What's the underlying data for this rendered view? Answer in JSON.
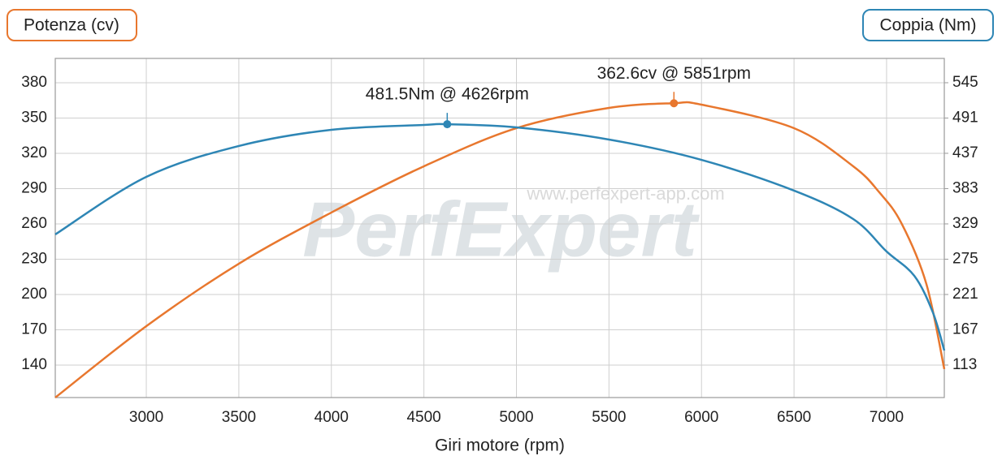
{
  "chart_data": {
    "type": "line",
    "x_label": "Giri motore (rpm)",
    "y_label": "Potenza (cv)",
    "y2_label": "Coppia (Nm)",
    "xlim": [
      2508,
      7312
    ],
    "xticks": [
      3000,
      3500,
      4000,
      4500,
      5000,
      5500,
      6000,
      6500,
      7000
    ],
    "ylim": [
      112.4,
      400.7
    ],
    "yticks": [
      140,
      170,
      200,
      230,
      260,
      290,
      320,
      350,
      380
    ],
    "y2lim": [
      63.3,
      582.2
    ],
    "y2ticks": [
      113,
      167,
      221,
      275,
      329,
      383,
      437,
      491,
      545
    ],
    "grid": true,
    "series": [
      {
        "name": "Potenza (cv)",
        "color": "#e8772e",
        "x": [
          2508,
          3000,
          3500,
          4000,
          4500,
          5000,
          5500,
          5851,
          6000,
          6500,
          6820,
          6960,
          7080,
          7215,
          7312
        ],
        "values": [
          112.4,
          173.1,
          226.2,
          269.7,
          309,
          341.4,
          358.6,
          362.6,
          361.4,
          341.4,
          309,
          287,
          260.7,
          209,
          136.6
        ]
      },
      {
        "name": "Coppia (Nm)",
        "color": "#2e86b5",
        "axis": "y2",
        "x": [
          2508,
          3000,
          3500,
          4000,
          4500,
          4626,
          5000,
          5500,
          6000,
          6500,
          6820,
          7000,
          7150,
          7250,
          7312
        ],
        "values": [
          312.9,
          401,
          448.2,
          473,
          480.4,
          481.5,
          476.7,
          458.1,
          427,
          379.9,
          336.4,
          286.8,
          249.5,
          193.7,
          135.3
        ]
      }
    ],
    "annotations": [
      {
        "text": "481.5Nm @ 4626rpm",
        "x": 4626,
        "y": 481.5,
        "axis": "y2",
        "color": "#2e86b5"
      },
      {
        "text": "362.6cv @ 5851rpm",
        "x": 5851,
        "y": 362.6,
        "color": "#e8772e"
      }
    ],
    "watermark": {
      "logo": "PerfExpert",
      "url": "www.perfexpert-app.com"
    }
  }
}
